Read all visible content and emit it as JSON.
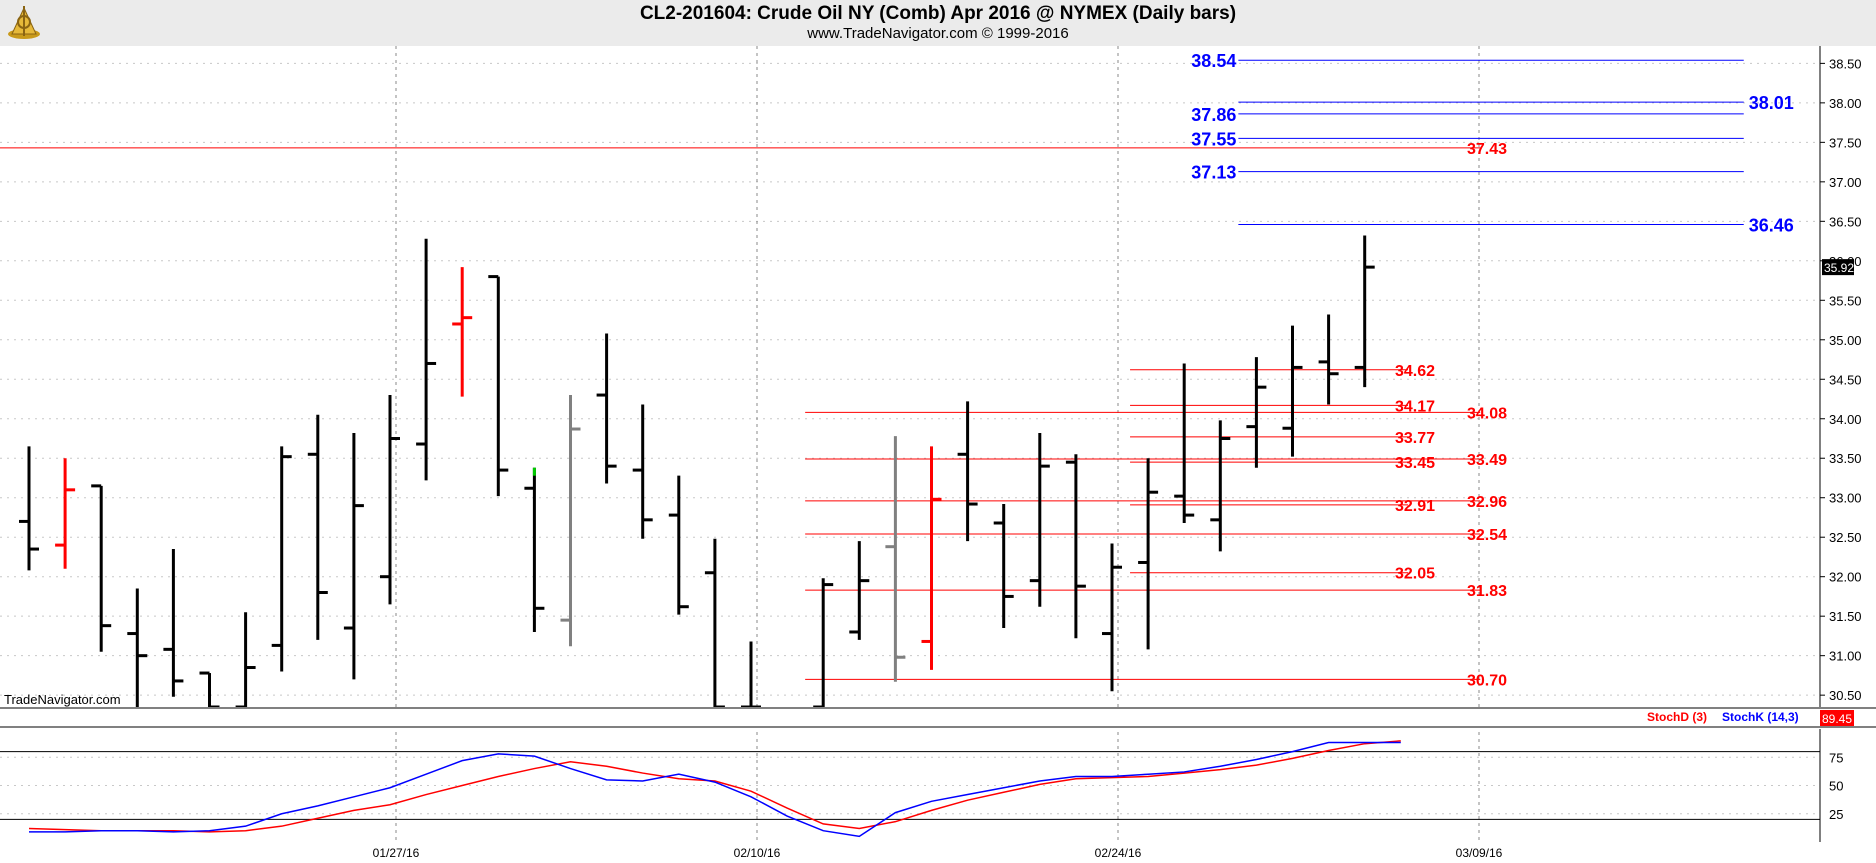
{
  "header": {
    "title": "CL2-201604:  Crude Oil NY (Comb) Apr 2016 @ NYMEX  (Daily bars)",
    "subtitle": "www.TradeNavigator.com © 1999-2016"
  },
  "watermark": "TradeNavigator.com",
  "colors": {
    "bar": "#000000",
    "bar_red": "#ff0000",
    "bar_gray": "#808080",
    "level_red": "#ff0000",
    "level_blue": "#0000ff",
    "stoch_d": "#ff0000",
    "stoch_k": "#0000ff"
  },
  "chart_data": [
    {
      "type": "ohlc",
      "title": "CL2-201604:  Crude Oil NY (Comb) Apr 2016 @ NYMEX  (Daily bars)",
      "ylim": [
        30.35,
        38.72
      ],
      "y_ticks": [
        "30.50",
        "31.00",
        "31.50",
        "32.00",
        "32.50",
        "33.00",
        "33.50",
        "34.00",
        "34.50",
        "35.00",
        "35.50",
        "36.00",
        "36.50",
        "37.00",
        "37.50",
        "38.00",
        "38.50"
      ],
      "x_ticks": [
        {
          "index": 10,
          "label": "01/27/16"
        },
        {
          "index": 20,
          "label": "02/10/16"
        },
        {
          "index": 30,
          "label": "02/24/16"
        },
        {
          "index": 40,
          "label": "03/09/16"
        }
      ],
      "n_slots": 50,
      "last_price_label": "35.92",
      "bars": [
        {
          "i": 0,
          "o": 32.7,
          "h": 33.65,
          "l": 32.08,
          "c": 32.35,
          "color": "black"
        },
        {
          "i": 1,
          "o": 32.4,
          "h": 33.5,
          "l": 32.1,
          "c": 33.1,
          "color": "red"
        },
        {
          "i": 2,
          "o": 33.15,
          "h": 33.15,
          "l": 31.05,
          "c": 31.38,
          "color": "black"
        },
        {
          "i": 3,
          "o": 31.28,
          "h": 31.85,
          "l": 30.35,
          "c": 31.0,
          "color": "black"
        },
        {
          "i": 4,
          "o": 31.08,
          "h": 32.35,
          "l": 30.48,
          "c": 30.68,
          "color": "black"
        },
        {
          "i": 5,
          "o": 30.78,
          "h": 30.78,
          "l": 30.35,
          "c": 30.35,
          "color": "black"
        },
        {
          "i": 6,
          "o": 30.35,
          "h": 31.55,
          "l": 30.35,
          "c": 30.85,
          "color": "black"
        },
        {
          "i": 7,
          "o": 31.13,
          "h": 33.65,
          "l": 30.8,
          "c": 33.52,
          "color": "black"
        },
        {
          "i": 8,
          "o": 33.55,
          "h": 34.05,
          "l": 31.2,
          "c": 31.8,
          "color": "black"
        },
        {
          "i": 9,
          "o": 31.35,
          "h": 33.82,
          "l": 30.7,
          "c": 32.9,
          "color": "black"
        },
        {
          "i": 10,
          "o": 32.0,
          "h": 34.3,
          "l": 31.65,
          "c": 33.75,
          "color": "black"
        },
        {
          "i": 11,
          "o": 33.68,
          "h": 36.28,
          "l": 33.22,
          "c": 34.7,
          "color": "black"
        },
        {
          "i": 12,
          "o": 35.2,
          "h": 35.92,
          "l": 34.28,
          "c": 35.28,
          "color": "red"
        },
        {
          "i": 13,
          "o": 35.8,
          "h": 35.8,
          "l": 33.02,
          "c": 33.35,
          "color": "black"
        },
        {
          "i": 14,
          "o": 33.12,
          "h": 33.38,
          "l": 31.3,
          "c": 31.6,
          "color": "black",
          "green_tick": true
        },
        {
          "i": 15,
          "o": 31.45,
          "h": 34.3,
          "l": 31.12,
          "c": 33.87,
          "color": "gray"
        },
        {
          "i": 16,
          "o": 34.3,
          "h": 35.08,
          "l": 33.18,
          "c": 33.4,
          "color": "black"
        },
        {
          "i": 17,
          "o": 33.35,
          "h": 34.18,
          "l": 32.48,
          "c": 32.72,
          "color": "black"
        },
        {
          "i": 18,
          "o": 32.78,
          "h": 33.28,
          "l": 31.52,
          "c": 31.62,
          "color": "black"
        },
        {
          "i": 19,
          "o": 32.05,
          "h": 32.48,
          "l": 30.35,
          "c": 30.35,
          "color": "black"
        },
        {
          "i": 20,
          "o": 30.35,
          "h": 31.18,
          "l": 30.35,
          "c": 30.35,
          "color": "black"
        },
        {
          "i": 22,
          "o": 30.35,
          "h": 31.98,
          "l": 30.35,
          "c": 31.9,
          "color": "black"
        },
        {
          "i": 23,
          "o": 31.3,
          "h": 32.45,
          "l": 31.2,
          "c": 31.95,
          "color": "black"
        },
        {
          "i": 24,
          "o": 32.38,
          "h": 33.78,
          "l": 30.67,
          "c": 30.98,
          "color": "gray"
        },
        {
          "i": 25,
          "o": 31.18,
          "h": 33.65,
          "l": 30.82,
          "c": 32.98,
          "color": "red"
        },
        {
          "i": 26,
          "o": 33.55,
          "h": 34.22,
          "l": 32.45,
          "c": 32.92,
          "color": "black"
        },
        {
          "i": 27,
          "o": 32.68,
          "h": 32.92,
          "l": 31.35,
          "c": 31.75,
          "color": "black"
        },
        {
          "i": 28,
          "o": 31.95,
          "h": 33.82,
          "l": 31.62,
          "c": 33.4,
          "color": "black"
        },
        {
          "i": 29,
          "o": 33.45,
          "h": 33.55,
          "l": 31.22,
          "c": 31.88,
          "color": "black"
        },
        {
          "i": 30,
          "o": 31.28,
          "h": 32.42,
          "l": 30.55,
          "c": 32.12,
          "color": "black"
        },
        {
          "i": 31,
          "o": 32.18,
          "h": 33.5,
          "l": 31.08,
          "c": 33.07,
          "color": "black"
        },
        {
          "i": 32,
          "o": 33.02,
          "h": 34.7,
          "l": 32.68,
          "c": 32.78,
          "color": "black"
        },
        {
          "i": 33,
          "o": 32.72,
          "h": 33.98,
          "l": 32.32,
          "c": 33.75,
          "color": "black"
        },
        {
          "i": 34,
          "o": 33.9,
          "h": 34.78,
          "l": 33.38,
          "c": 34.4,
          "color": "black"
        },
        {
          "i": 35,
          "o": 33.88,
          "h": 35.18,
          "l": 33.52,
          "c": 34.65,
          "color": "black"
        },
        {
          "i": 36,
          "o": 34.72,
          "h": 35.32,
          "l": 34.18,
          "c": 34.57,
          "color": "black"
        },
        {
          "i": 37,
          "o": 34.65,
          "h": 36.32,
          "l": 34.4,
          "c": 35.92,
          "color": "black"
        }
      ],
      "levels": [
        {
          "value": 37.43,
          "label": "37.43",
          "color": "red",
          "from": 0,
          "to": 40.2,
          "label_pos": "right"
        },
        {
          "value": 34.62,
          "label": "34.62",
          "color": "red",
          "from": 30.5,
          "to": 38.2,
          "label_pos": "mid"
        },
        {
          "value": 34.08,
          "label": "34.08",
          "color": "red",
          "from": 21.5,
          "to": 40.2,
          "label_pos": "right"
        },
        {
          "value": 34.17,
          "label": "34.17",
          "color": "red",
          "from": 30.5,
          "to": 38.2,
          "label_pos": "mid"
        },
        {
          "value": 33.77,
          "label": "33.77",
          "color": "red",
          "from": 30.5,
          "to": 38.2,
          "label_pos": "mid"
        },
        {
          "value": 33.49,
          "label": "33.49",
          "color": "red",
          "from": 21.5,
          "to": 40.2,
          "label_pos": "right"
        },
        {
          "value": 33.45,
          "label": "33.45",
          "color": "red",
          "from": 30.5,
          "to": 38.2,
          "label_pos": "mid"
        },
        {
          "value": 32.96,
          "label": "32.96",
          "color": "red",
          "from": 21.5,
          "to": 40.2,
          "label_pos": "right"
        },
        {
          "value": 32.91,
          "label": "32.91",
          "color": "red",
          "from": 30.5,
          "to": 38.2,
          "label_pos": "mid"
        },
        {
          "value": 32.54,
          "label": "32.54",
          "color": "red",
          "from": 21.5,
          "to": 40.2,
          "label_pos": "right"
        },
        {
          "value": 32.05,
          "label": "32.05",
          "color": "red",
          "from": 30.5,
          "to": 38.2,
          "label_pos": "mid"
        },
        {
          "value": 31.83,
          "label": "31.83",
          "color": "red",
          "from": 21.5,
          "to": 40.2,
          "label_pos": "right"
        },
        {
          "value": 30.7,
          "label": "30.70",
          "color": "red",
          "from": 21.5,
          "to": 40.2,
          "label_pos": "right"
        },
        {
          "value": 38.54,
          "label": "38.54",
          "color": "blue",
          "from": 33.5,
          "to": 47.5,
          "label_pos": "left"
        },
        {
          "value": 37.86,
          "label": "37.86",
          "color": "blue",
          "from": 33.5,
          "to": 47.5,
          "label_pos": "left"
        },
        {
          "value": 37.55,
          "label": "37.55",
          "color": "blue",
          "from": 33.5,
          "to": 47.5,
          "label_pos": "left"
        },
        {
          "value": 37.13,
          "label": "37.13",
          "color": "blue",
          "from": 33.5,
          "to": 47.5,
          "label_pos": "left"
        },
        {
          "value": 38.01,
          "label": "38.01",
          "color": "blue",
          "from": 33.5,
          "to": 47.5,
          "label_pos": "right"
        },
        {
          "value": 36.46,
          "label": "36.46",
          "color": "blue",
          "from": 33.5,
          "to": 47.5,
          "label_pos": "right"
        }
      ]
    },
    {
      "type": "line",
      "title": "",
      "ylim": [
        0,
        100
      ],
      "y_ticks": [
        "25",
        "50",
        "75"
      ],
      "reference_lines": [
        20,
        80
      ],
      "last_value_label": "89.45",
      "series": [
        {
          "name": "StochD (3)",
          "color": "red",
          "values": [
            12,
            11,
            10,
            10,
            10,
            9,
            10,
            14,
            21,
            28,
            33,
            42,
            50,
            58,
            65,
            71,
            67,
            61,
            56,
            54,
            45,
            30,
            16,
            12,
            18,
            28,
            37,
            44,
            51,
            56,
            57,
            58,
            61,
            64,
            68,
            74,
            81,
            87,
            89.5
          ]
        },
        {
          "name": "StochK (14,3)",
          "color": "blue",
          "values": [
            9,
            9,
            10,
            10,
            9,
            10,
            14,
            25,
            32,
            40,
            48,
            60,
            72,
            78,
            76,
            65,
            55,
            54,
            60,
            53,
            40,
            23,
            10,
            5,
            26,
            36,
            42,
            48,
            54,
            58,
            58,
            60,
            62,
            67,
            73,
            80,
            88,
            88,
            88
          ]
        }
      ]
    }
  ]
}
